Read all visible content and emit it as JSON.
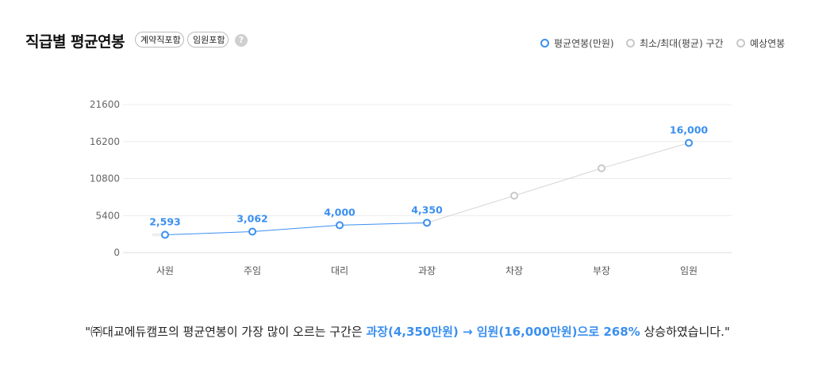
{
  "header": {
    "title": "직급별 평균연봉",
    "tag_contract": "계약직포함",
    "tag_exec": "임원포함",
    "help_icon": "?"
  },
  "legend": {
    "avg": "평균연봉(만원)",
    "range": "최소/최대(평균) 구간",
    "expected": "예상연봉"
  },
  "colors": {
    "accent": "#3b8ff0",
    "predicted": "#c8c8c8",
    "grid": "#ececec"
  },
  "chart_data": {
    "type": "line",
    "categories": [
      "사원",
      "주임",
      "대리",
      "과장",
      "차장",
      "부장",
      "임원"
    ],
    "ylim": [
      0,
      21600
    ],
    "yticks": [
      "0",
      "5400",
      "10800",
      "16200",
      "21600"
    ],
    "series": [
      {
        "name": "평균연봉(만원)",
        "values": [
          2593,
          3062,
          4000,
          4350,
          null,
          null,
          16000
        ],
        "labels": [
          "2,593",
          "3,062",
          "4,000",
          "4,350",
          "",
          "",
          "16,000"
        ]
      },
      {
        "name": "예상연봉",
        "values": [
          null,
          null,
          null,
          4350,
          8300,
          12300,
          16000
        ]
      }
    ]
  },
  "summary": {
    "prefix": "\"㈜대교에듀캠프의 평균연봉이 가장 많이 오르는 구간은 ",
    "highlight": "과장(4,350만원) → 임원(16,000만원)으로 268%",
    "suffix": " 상승하였습니다.\""
  }
}
